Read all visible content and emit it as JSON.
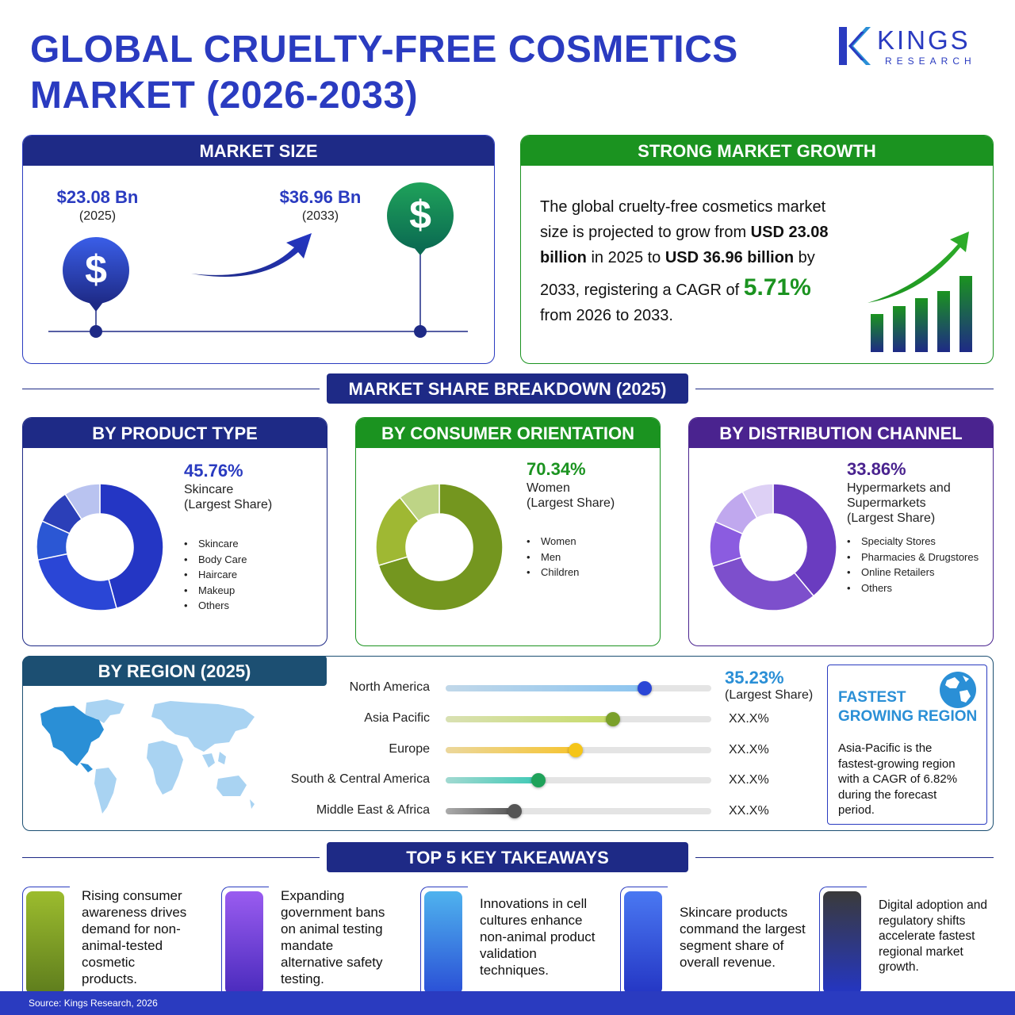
{
  "header": {
    "title_line1": "GLOBAL CRUELTY-FREE COSMETICS",
    "title_line2": "MARKET (2026-2033)",
    "logo_word": "KINGS",
    "logo_sub": "RESEARCH"
  },
  "market_size": {
    "heading": "MARKET SIZE",
    "start_value": "$23.08 Bn",
    "start_year": "(2025)",
    "end_value": "$36.96 Bn",
    "end_year": "(2033)",
    "dollar_symbol": "$"
  },
  "growth": {
    "heading": "STRONG MARKET GROWTH",
    "line1": "The global cruelty-free cosmetics market",
    "line2_a": "size is projected to grow from ",
    "line2_b": "USD 23.08",
    "line3_a": "billion",
    "line3_b": " in 2025 to ",
    "line3_c": "USD 36.96 billion",
    "line3_d": " by",
    "line4_a": "2033, registering a CAGR of ",
    "cagr": "5.71%",
    "line5": "from 2026 to 2033."
  },
  "breakdown_heading": "MARKET SHARE BREAKDOWN (2025)",
  "product_type": {
    "heading": "BY PRODUCT TYPE",
    "pct": "45.76%",
    "label1": "Skincare",
    "label2": "(Largest Share)",
    "legend": [
      "Skincare",
      "Body Care",
      "Haircare",
      "Makeup",
      "Others"
    ],
    "colors": [
      "#2436c4",
      "#2a46d6",
      "#2b57d4",
      "#2b3fb8",
      "#b9c3f0"
    ]
  },
  "consumer": {
    "heading": "BY CONSUMER ORIENTATION",
    "pct": "70.34%",
    "label1": "Women",
    "label2": "(Largest Share)",
    "legend": [
      "Women",
      "Men",
      "Children"
    ],
    "colors": [
      "#74961f",
      "#9fb833",
      "#bed486"
    ]
  },
  "distribution": {
    "heading": "BY DISTRIBUTION CHANNEL",
    "pct": "33.86%",
    "label1": "Hypermarkets and",
    "label2": "Supermarkets",
    "label3": "(Largest Share)",
    "legend": [
      "Specialty Stores",
      "Pharmacies  & Drugstores",
      "Online Retailers",
      "Others"
    ],
    "colors": [
      "#6a3cc0",
      "#7d4fcc",
      "#8b5ce0",
      "#c0a8ee",
      "#ddd0f5"
    ]
  },
  "region": {
    "heading": "BY REGION (2025)",
    "rows": [
      {
        "name": "North America",
        "value": "35.23%",
        "sub": "(Largest Share)",
        "level": 0.75,
        "fill": "#8cc5f0",
        "knob": "#2a46d6"
      },
      {
        "name": "Asia Pacific",
        "value": "XX.X%",
        "level": 0.63,
        "fill": "#c8dc6a",
        "knob": "#7aa02a"
      },
      {
        "name": "Europe",
        "value": "XX.X%",
        "level": 0.49,
        "fill": "#f6c431",
        "knob": "#f5c518"
      },
      {
        "name": "South & Central America",
        "value": "XX.X%",
        "level": 0.35,
        "fill": "#3ec9b5",
        "knob": "#1fa25a"
      },
      {
        "name": "Middle East & Africa",
        "value": "XX.X%",
        "level": 0.26,
        "fill": "#555555",
        "knob": "#555555"
      }
    ],
    "fastest_title1": "FASTEST",
    "fastest_title2": "GROWING REGION",
    "fastest_lines": [
      "Asia-Pacific is the",
      "fastest-growing region",
      "with a CAGR of 6.82%",
      "during the forecast",
      "period."
    ]
  },
  "takeaways": {
    "heading": "TOP 5 KEY TAKEAWAYS",
    "items": [
      {
        "lines": [
          "Rising consumer",
          "awareness drives",
          "demand for non-",
          "animal-tested",
          "cosmetic",
          "products."
        ],
        "color_top": "#9cbc2e",
        "color_bottom": "#5e7d1d"
      },
      {
        "lines": [
          "Expanding",
          "government bans",
          "on animal testing",
          "mandate",
          "alternative safety",
          "testing."
        ],
        "color_top": "#9a5cf0",
        "color_bottom": "#4a2bbd"
      },
      {
        "lines": [
          "Innovations in cell",
          "cultures enhance",
          "non-animal product",
          "validation",
          "techniques."
        ],
        "color_top": "#4fb3ee",
        "color_bottom": "#2a4fd6"
      },
      {
        "lines": [
          "Skincare products",
          "command the largest",
          "segment share of",
          "overall revenue."
        ],
        "color_top": "#4a78f2",
        "color_bottom": "#2436c4"
      },
      {
        "lines": [
          "Digital adoption and",
          "regulatory shifts",
          "accelerate fastest",
          "regional market",
          "growth."
        ],
        "color_top": "#3a3a3a",
        "color_bottom": "#2436c4"
      }
    ]
  },
  "footer": "Source: Kings Research, 2026",
  "chart_data": [
    {
      "type": "pie",
      "title": "BY PRODUCT TYPE",
      "categories": [
        "Skincare",
        "Body Care",
        "Haircare",
        "Makeup",
        "Others"
      ],
      "values": [
        45.76,
        26,
        10,
        9,
        9.24
      ]
    },
    {
      "type": "pie",
      "title": "BY CONSUMER ORIENTATION",
      "categories": [
        "Women",
        "Men",
        "Children"
      ],
      "values": [
        70.34,
        19,
        10.66
      ]
    },
    {
      "type": "pie",
      "title": "BY DISTRIBUTION CHANNEL",
      "categories": [
        "Hypermarkets and Supermarkets",
        "Specialty Stores",
        "Pharmacies  & Drugstores",
        "Online Retailers",
        "Others"
      ],
      "values": [
        33.86,
        27,
        10,
        9,
        7
      ]
    },
    {
      "type": "bar",
      "title": "BY REGION (2025)",
      "categories": [
        "North America",
        "Asia Pacific",
        "Europe",
        "South & Central America",
        "Middle East & Africa"
      ],
      "values": [
        35.23,
        null,
        null,
        null,
        null
      ]
    },
    {
      "type": "bar",
      "title": "STRONG MARKET GROWTH",
      "categories": [
        "1",
        "2",
        "3",
        "4",
        "5"
      ],
      "values": [
        48,
        58,
        68,
        77,
        96
      ]
    }
  ]
}
